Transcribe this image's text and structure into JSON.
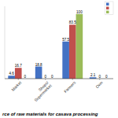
{
  "chart_data": {
    "type": "bar",
    "title": "rce of raw materials for casava processing",
    "categories": [
      "Market",
      "Shops/\nSupermarket",
      "Farmers",
      "Own"
    ],
    "series": [
      {
        "name": " ",
        "color": "#4472C4",
        "values": [
          4.6,
          18.8,
          57.5,
          2.1
        ]
      },
      {
        "name": " ",
        "color": "#C0504D",
        "values": [
          16.7,
          0,
          83.5,
          0
        ]
      },
      {
        "name": " ",
        "color": "#9BBB59",
        "values": [
          0,
          0,
          100,
          0
        ]
      }
    ],
    "ylim": [
      0,
      112
    ],
    "tick_labels": "x",
    "data_labels": true,
    "legend": "upper right"
  }
}
